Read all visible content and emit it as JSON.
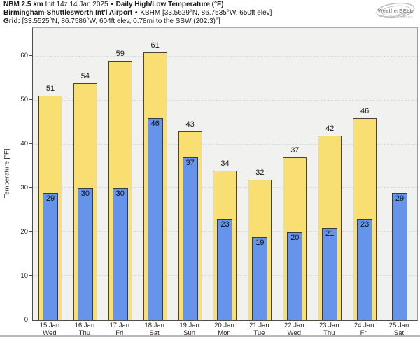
{
  "header": {
    "model": "NBM 2.5 km",
    "init": "Init 14z 14 Jan 2025",
    "bullet": "•",
    "product": "Daily High/Low Temperature (°F)",
    "station_name": "Birmingham-Shuttlesworth Int'l Airport",
    "station_info": "KBHM [33.5629°N, 86.7535°W, 650ft elev]",
    "grid_label": "Grid:",
    "grid_info": "[33.5525°N, 86.7586°W, 604ft elev, 0.78mi to the SSW (202.3)°]"
  },
  "logo": {
    "brand": "WeatherBELL",
    "subtext": "Analytics LLC"
  },
  "chart_data": {
    "type": "bar",
    "title": "NBM 2.5 km Daily High/Low Temperature (°F) — Birmingham-Shuttlesworth Int'l Airport",
    "ylabel": "Temperature [°F]",
    "ylim": [
      0,
      66.5
    ],
    "yticks": [
      0,
      10,
      20,
      30,
      40,
      50,
      60
    ],
    "grid": "horizontal dashed",
    "legend": "none",
    "categories": [
      "15 Jan",
      "16 Jan",
      "17 Jan",
      "18 Jan",
      "19 Jan",
      "20 Jan",
      "21 Jan",
      "22 Jan",
      "23 Jan",
      "24 Jan",
      "25 Jan"
    ],
    "weekdays": [
      "Wed",
      "Thu",
      "Fri",
      "Sat",
      "Sun",
      "Mon",
      "Tue",
      "Wed",
      "Thu",
      "Fri",
      "Sat"
    ],
    "series": [
      {
        "name": "Daily High",
        "color": "#f9df71",
        "values": [
          51,
          54,
          59,
          61,
          43,
          34,
          32,
          37,
          42,
          46,
          null
        ]
      },
      {
        "name": "Daily Low",
        "color": "#6594ea",
        "values": [
          29,
          30,
          30,
          46,
          37,
          23,
          19,
          20,
          21,
          23,
          29
        ]
      }
    ]
  },
  "colors": {
    "high_fill": "#f9df71",
    "low_fill": "#6594ea",
    "bar_edge_high": "#44443a",
    "bar_edge_low": "#333c4e",
    "plot_bg": "#f1f1ef",
    "gridline": "#d9d9d9",
    "axis": "#4d4d4d"
  }
}
